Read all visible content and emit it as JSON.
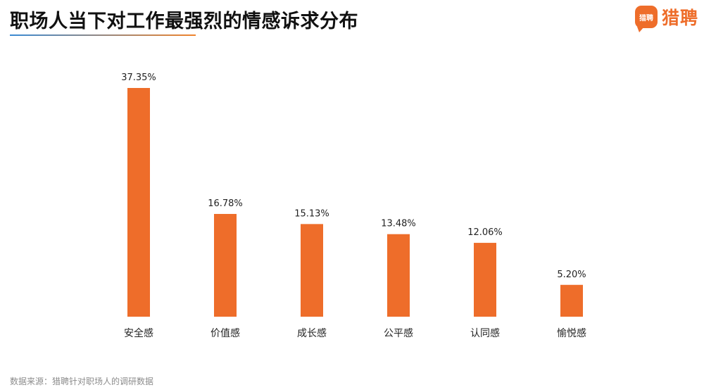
{
  "header": {
    "title": "职场人当下对工作最强烈的情感诉求分布",
    "brand_logo_text": "猎聘",
    "brand_name": "猎聘"
  },
  "source_note": "数据来源：猎聘针对职场人的调研数据",
  "colors": {
    "bar": "#ee6d2a",
    "brand": "#ee6d2a"
  },
  "chart_data": {
    "type": "bar",
    "categories": [
      "安全感",
      "价值感",
      "成长感",
      "公平感",
      "认同感",
      "愉悦感"
    ],
    "values": [
      37.35,
      16.78,
      15.13,
      13.48,
      12.06,
      5.2
    ],
    "value_labels": [
      "37.35%",
      "16.78%",
      "15.13%",
      "13.48%",
      "12.06%",
      "5.20%"
    ],
    "title": "职场人当下对工作最强烈的情感诉求分布",
    "xlabel": "",
    "ylabel": "",
    "unit": "%",
    "ylim": [
      0,
      37.35
    ],
    "grid": false,
    "legend": "none"
  }
}
